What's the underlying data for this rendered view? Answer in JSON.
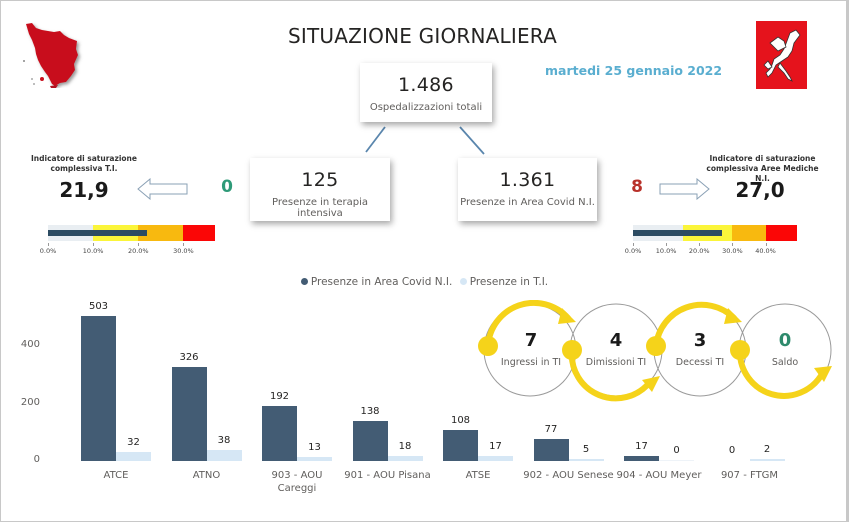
{
  "header": {
    "title": "SITUAZIONE GIORNALIERA",
    "date": "martedi 25 gennaio 2022",
    "left_logo": "tuscany-map-icon",
    "right_logo": "pegasus-flag-icon"
  },
  "kpis": {
    "total": {
      "value": "1.486",
      "label": "Ospedalizzazioni totali"
    },
    "ti": {
      "value": "125",
      "label": "Presenze in terapia intensiva"
    },
    "nm": {
      "value": "1.361",
      "label": "Presenze in Area Covid N.I."
    }
  },
  "indicators": {
    "ti": {
      "title_line1": "Indicatore di saturazione",
      "title_line2": "complessiva T.I.",
      "value": "21,9",
      "delta": "0",
      "delta_color": "#2e9a78",
      "arrow": "arrow-left-icon",
      "gauge": {
        "value_pct": 21.9,
        "max_pct": 37,
        "bands": [
          {
            "from": 0,
            "to": 10,
            "color": "#e9eef2"
          },
          {
            "from": 10,
            "to": 20,
            "color": "#fbf53a"
          },
          {
            "from": 20,
            "to": 30,
            "color": "#f8b90f"
          },
          {
            "from": 30,
            "to": 37,
            "color": "#fb0606"
          }
        ],
        "ticks": [
          "0.0%",
          "10.0%",
          "20.0%",
          "30.0%"
        ]
      }
    },
    "nm": {
      "title_line1": "Indicatore di saturazione",
      "title_line2": "complessiva Aree Mediche N.I.",
      "value": "27,0",
      "delta": "8",
      "delta_color": "#b8312a",
      "arrow": "arrow-right-icon",
      "gauge": {
        "value_pct": 27.0,
        "max_pct": 49.5,
        "bands": [
          {
            "from": 0,
            "to": 15,
            "color": "#e9eef2"
          },
          {
            "from": 15,
            "to": 30,
            "color": "#fbf53a"
          },
          {
            "from": 30,
            "to": 40,
            "color": "#f8b90f"
          },
          {
            "from": 40,
            "to": 49.5,
            "color": "#fb0606"
          }
        ],
        "ticks": [
          "0.0%",
          "10.0%",
          "20.0%",
          "30.0%",
          "40.0%"
        ]
      }
    }
  },
  "legend": {
    "series1": "Presenze in Area Covid N.I.",
    "series2": "Presenze in T.I."
  },
  "flow": {
    "ingressi": {
      "value": "7",
      "label": "Ingressi in TI"
    },
    "dimissioni": {
      "value": "4",
      "label": "Dimissioni TI"
    },
    "decessi": {
      "value": "3",
      "label": "Decessi TI"
    },
    "saldo": {
      "value": "0",
      "label": "Saldo",
      "color": "#2e8a6c"
    }
  },
  "chart_data": {
    "type": "bar",
    "title": "",
    "xlabel": "",
    "ylabel": "",
    "ylim": [
      0,
      520
    ],
    "yticks": [
      0,
      200,
      400
    ],
    "grid": false,
    "legend_position": "top",
    "categories": [
      "ATCE",
      "ATNO",
      "903 - AOU Careggi",
      "901 - AOU Pisana",
      "ATSE",
      "902 - AOU Senese",
      "904 - AOU Meyer",
      "907 - FTGM"
    ],
    "category_lines": [
      [
        "ATCE"
      ],
      [
        "ATNO"
      ],
      [
        "903 - AOU",
        "Careggi"
      ],
      [
        "901 - AOU Pisana"
      ],
      [
        "ATSE"
      ],
      [
        "902 - AOU Senese"
      ],
      [
        "904 - AOU Meyer"
      ],
      [
        "907 - FTGM"
      ]
    ],
    "series": [
      {
        "name": "Presenze in Area Covid N.I.",
        "color": "#435c74",
        "values": [
          503,
          326,
          192,
          138,
          108,
          77,
          17,
          0
        ]
      },
      {
        "name": "Presenze in T.I.",
        "color": "#d6e7f5",
        "values": [
          32,
          38,
          13,
          18,
          17,
          5,
          0,
          2
        ]
      }
    ]
  }
}
